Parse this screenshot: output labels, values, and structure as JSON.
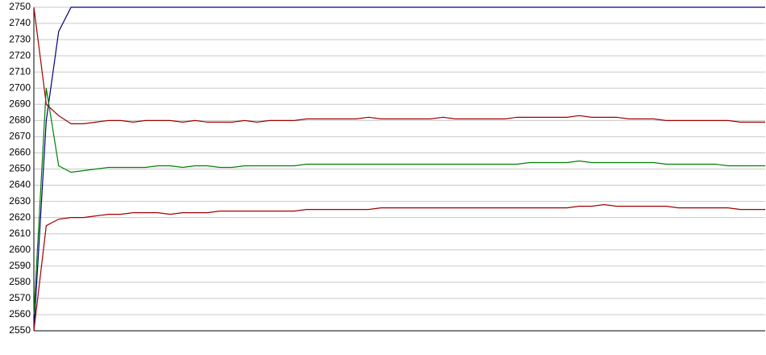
{
  "chart_data": {
    "type": "line",
    "categories": [
      null,
      null,
      null,
      null,
      null,
      null,
      null,
      null,
      null,
      null,
      null,
      null,
      null,
      null,
      null,
      null,
      null,
      null,
      null,
      null,
      null,
      null,
      null,
      null,
      null,
      null,
      null,
      null,
      null,
      null,
      null,
      null,
      null,
      null,
      null,
      null,
      null,
      null,
      null,
      null,
      null,
      null,
      null,
      null,
      null,
      null,
      null,
      null,
      null,
      null,
      null,
      null,
      null,
      null,
      null,
      null,
      null,
      null,
      null,
      null
    ],
    "series": [
      {
        "color": "#000080",
        "values": [
          2550,
          2680,
          2735,
          2750,
          2750,
          2750,
          2750,
          2750,
          2750,
          2750,
          2750,
          2750,
          2750,
          2750,
          2750,
          2750,
          2750,
          2750,
          2750,
          2750,
          2750,
          2750,
          2750,
          2750,
          2750,
          2750,
          2750,
          2750,
          2750,
          2750,
          2750,
          2750,
          2750,
          2750,
          2750,
          2750,
          2750,
          2750,
          2750,
          2750,
          2750,
          2750,
          2750,
          2750,
          2750,
          2750,
          2750,
          2750,
          2750,
          2750,
          2750,
          2750,
          2750,
          2750,
          2750,
          2750,
          2750,
          2750,
          2750,
          2750
        ]
      },
      {
        "color": "#a00000",
        "values": [
          2750,
          2690,
          2683,
          2678,
          2678,
          2679,
          2680,
          2680,
          2679,
          2680,
          2680,
          2680,
          2679,
          2680,
          2679,
          2679,
          2679,
          2680,
          2679,
          2680,
          2680,
          2680,
          2681,
          2681,
          2681,
          2681,
          2681,
          2682,
          2681,
          2681,
          2681,
          2681,
          2681,
          2682,
          2681,
          2681,
          2681,
          2681,
          2681,
          2682,
          2682,
          2682,
          2682,
          2682,
          2683,
          2682,
          2682,
          2682,
          2681,
          2681,
          2681,
          2680,
          2680,
          2680,
          2680,
          2680,
          2680,
          2679,
          2679,
          2679
        ]
      },
      {
        "color": "#008000",
        "values": [
          2560,
          2700,
          2652,
          2648,
          2649,
          2650,
          2651,
          2651,
          2651,
          2651,
          2652,
          2652,
          2651,
          2652,
          2652,
          2651,
          2651,
          2652,
          2652,
          2652,
          2652,
          2652,
          2653,
          2653,
          2653,
          2653,
          2653,
          2653,
          2653,
          2653,
          2653,
          2653,
          2653,
          2653,
          2653,
          2653,
          2653,
          2653,
          2653,
          2653,
          2654,
          2654,
          2654,
          2654,
          2655,
          2654,
          2654,
          2654,
          2654,
          2654,
          2654,
          2653,
          2653,
          2653,
          2653,
          2653,
          2652,
          2652,
          2652,
          2652
        ]
      },
      {
        "color": "#a00000",
        "values": [
          2550,
          2615,
          2619,
          2620,
          2620,
          2621,
          2622,
          2622,
          2623,
          2623,
          2623,
          2622,
          2623,
          2623,
          2623,
          2624,
          2624,
          2624,
          2624,
          2624,
          2624,
          2624,
          2625,
          2625,
          2625,
          2625,
          2625,
          2625,
          2626,
          2626,
          2626,
          2626,
          2626,
          2626,
          2626,
          2626,
          2626,
          2626,
          2626,
          2626,
          2626,
          2626,
          2626,
          2626,
          2627,
          2627,
          2628,
          2627,
          2627,
          2627,
          2627,
          2627,
          2626,
          2626,
          2626,
          2626,
          2626,
          2625,
          2625,
          2625
        ]
      }
    ],
    "ylim": [
      2550,
      2750
    ],
    "yticks": [
      2550,
      2560,
      2570,
      2580,
      2590,
      2600,
      2610,
      2620,
      2630,
      2640,
      2650,
      2660,
      2670,
      2680,
      2690,
      2700,
      2710,
      2720,
      2730,
      2740,
      2750
    ],
    "grid": true
  }
}
